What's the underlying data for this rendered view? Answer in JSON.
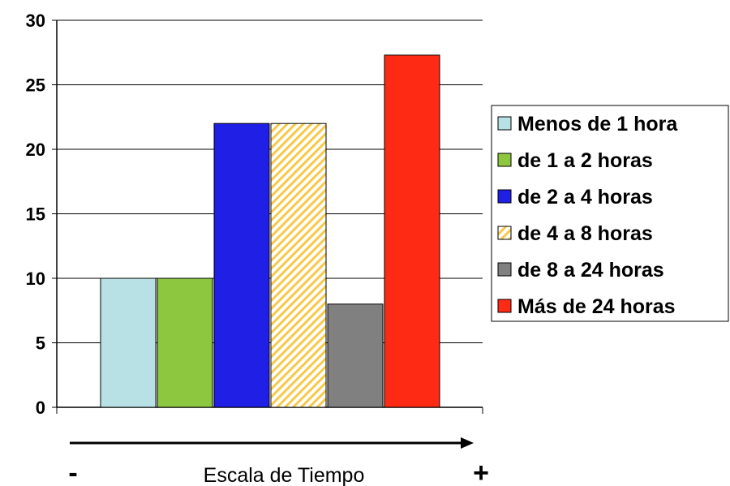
{
  "chart_data": {
    "type": "bar",
    "title": "",
    "xlabel": "Escala de Tiempo",
    "ylabel": "",
    "ylim": [
      0,
      30
    ],
    "yticks": [
      "0",
      "5",
      "10",
      "15",
      "20",
      "25",
      "30"
    ],
    "grid": true,
    "legend_position": "right",
    "axis_start_label": "-",
    "axis_end_label": "+",
    "series": [
      {
        "name": "Menos de 1 hora",
        "value": 10,
        "color": "#b7e1e4",
        "pattern": "solid"
      },
      {
        "name": "de 1 a 2 horas",
        "value": 10,
        "color": "#8dc63f",
        "pattern": "solid"
      },
      {
        "name": "de 2 a 4 horas",
        "value": 22,
        "color": "#1f1fe6",
        "pattern": "solid"
      },
      {
        "name": "de 4 a 8 horas",
        "value": 22,
        "color": "#f7c948",
        "pattern": "diagonal-hatch"
      },
      {
        "name": "de 8 a 24 horas",
        "value": 8,
        "color": "#808080",
        "pattern": "solid"
      },
      {
        "name": "Más de 24 horas",
        "value": 27.3,
        "color": "#ff2a14",
        "pattern": "solid"
      }
    ]
  }
}
